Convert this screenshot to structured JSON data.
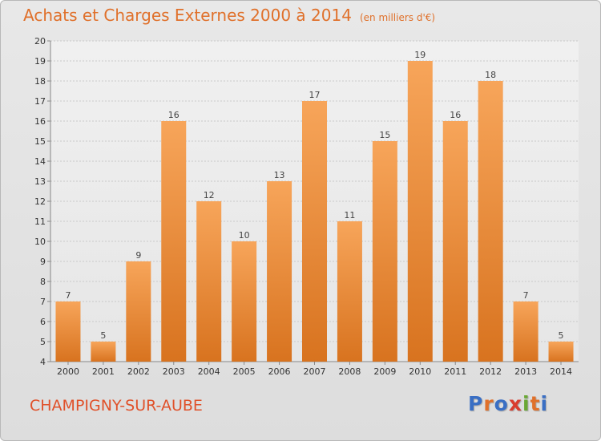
{
  "header": {
    "title": "Achats et Charges Externes 2000 à 2014",
    "unit": "(en milliers d'€)"
  },
  "footer": {
    "commune": "CHAMPIGNY-SUR-AUBE",
    "logo": "Proxiti",
    "logo_colors": [
      "#3a6fc4",
      "#e0702a",
      "#3a6fc4",
      "#d93c2e",
      "#6aa834",
      "#e0702a",
      "#3a6fc4"
    ]
  },
  "colors": {
    "bar_light": "#f7a55a",
    "bar_dark": "#d8731f",
    "title": "#e0702a",
    "commune": "#e0512a"
  },
  "chart_data": {
    "type": "bar",
    "title": "Achats et Charges Externes 2000 à 2014",
    "subtitle": "(en milliers d'€)",
    "xlabel": "",
    "ylabel": "",
    "categories": [
      "2000",
      "2001",
      "2002",
      "2003",
      "2004",
      "2005",
      "2006",
      "2007",
      "2008",
      "2009",
      "2010",
      "2011",
      "2012",
      "2013",
      "2014"
    ],
    "values": [
      7,
      5,
      9,
      16,
      12,
      10,
      13,
      17,
      11,
      15,
      19,
      16,
      18,
      7,
      5
    ],
    "ylim": [
      4,
      20
    ],
    "yticks": [
      4,
      5,
      6,
      7,
      8,
      9,
      10,
      11,
      12,
      13,
      14,
      15,
      16,
      17,
      18,
      19,
      20
    ],
    "grid": true,
    "data_labels": true
  }
}
